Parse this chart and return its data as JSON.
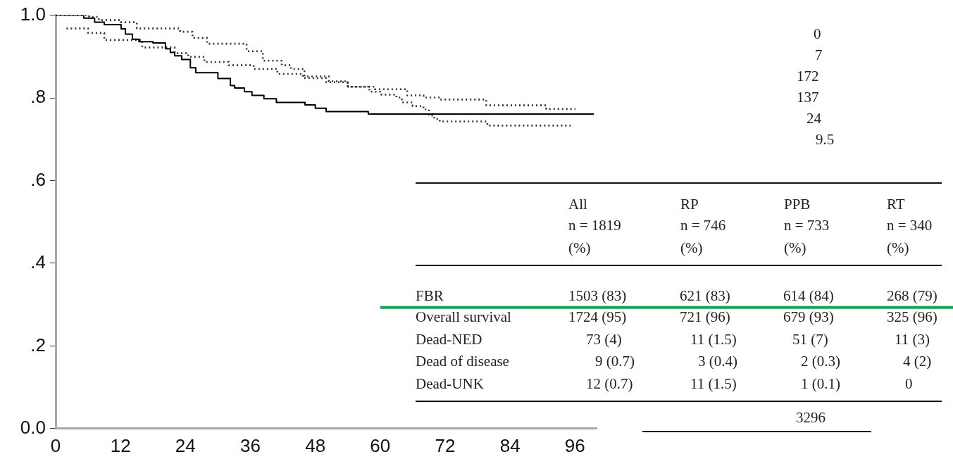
{
  "chart_data": {
    "type": "step",
    "xlim": [
      0,
      100
    ],
    "xticks": [
      0,
      12,
      24,
      36,
      48,
      60,
      72,
      84,
      96
    ],
    "ylim": [
      0,
      1
    ],
    "yticks": [
      {
        "value": 0,
        "label": "0.0"
      },
      {
        "value": 0.2,
        "label": ".2"
      },
      {
        "value": 0.4,
        "label": ".4"
      },
      {
        "value": 0.6,
        "label": ".6"
      },
      {
        "value": 0.8,
        "label": ".8"
      },
      {
        "value": 1,
        "label": "1.0"
      }
    ],
    "grid": false,
    "legend": false,
    "series": [
      {
        "color": "#000000",
        "line_style": "solid",
        "x": [
          0,
          5.2,
          7.2,
          9,
          12.1,
          12.9,
          14.2,
          15.4,
          18,
          20.3,
          21.2,
          22,
          23.3,
          24.9,
          25.9,
          30,
          32.3,
          33.1,
          34.9,
          36.3,
          38.5,
          40.8,
          46.1,
          48,
          50,
          57.8,
          99.5
        ],
        "values": [
          1.0,
          0.993,
          0.983,
          0.977,
          0.967,
          0.954,
          0.942,
          0.936,
          0.933,
          0.919,
          0.91,
          0.902,
          0.893,
          0.873,
          0.861,
          0.847,
          0.83,
          0.824,
          0.815,
          0.806,
          0.798,
          0.789,
          0.783,
          0.775,
          0.767,
          0.761,
          0.761
        ]
      },
      {
        "color": "#333333",
        "line_style": "dotted",
        "x": [
          0,
          6.2,
          8,
          12,
          15,
          23,
          25.3,
          28,
          35.3,
          38.3,
          41.8,
          43.5,
          46,
          50.5,
          54,
          59,
          65,
          68,
          71,
          79.6,
          90.7,
          96.1
        ],
        "values": [
          1.0,
          0.996,
          0.988,
          0.983,
          0.968,
          0.96,
          0.945,
          0.931,
          0.913,
          0.89,
          0.879,
          0.87,
          0.852,
          0.84,
          0.827,
          0.821,
          0.806,
          0.801,
          0.796,
          0.782,
          0.773,
          0.773
        ]
      },
      {
        "color": "#333333",
        "line_style": "dotted",
        "x": [
          2,
          6,
          9,
          16,
          22,
          24.5,
          27.5,
          32,
          36.6,
          41,
          45.7,
          50,
          54,
          58,
          60,
          63,
          64,
          66,
          68,
          69,
          70,
          71,
          79.8,
          95.2
        ],
        "values": [
          0.968,
          0.957,
          0.94,
          0.922,
          0.908,
          0.899,
          0.887,
          0.879,
          0.87,
          0.858,
          0.848,
          0.838,
          0.827,
          0.815,
          0.808,
          0.801,
          0.789,
          0.78,
          0.772,
          0.757,
          0.749,
          0.743,
          0.733,
          0.733
        ]
      }
    ],
    "ref_lines": [
      {
        "axis": "y",
        "value": 0.293,
        "color": "#00b050"
      }
    ],
    "annotations": [
      "0",
      "7",
      "172",
      "137",
      "24",
      "9.5",
      "All",
      "RP",
      "PPB",
      "RT",
      "n = 1819",
      "n = 746",
      "n = 733",
      "n = 340",
      "(%)",
      "(%)",
      "(%)",
      "(%)",
      "FBR",
      "1503 (83)",
      "621 (83)",
      "614 (84)",
      "268 (79)",
      "Overall survival",
      "1724 (95)",
      "721 (96)",
      "679 (93)",
      "325 (96)",
      "Dead-NED",
      "73 (4)",
      "11 (1.5)",
      "51 (7)",
      "11 (3)",
      "Dead of disease",
      "9 (0.7)",
      "3 (0.4)",
      "2 (0.3)",
      "4 (2)",
      "Dead-UNK",
      "12 (0.7)",
      "11 (1.5)",
      "1 (0.1)",
      "0",
      "3296"
    ]
  }
}
